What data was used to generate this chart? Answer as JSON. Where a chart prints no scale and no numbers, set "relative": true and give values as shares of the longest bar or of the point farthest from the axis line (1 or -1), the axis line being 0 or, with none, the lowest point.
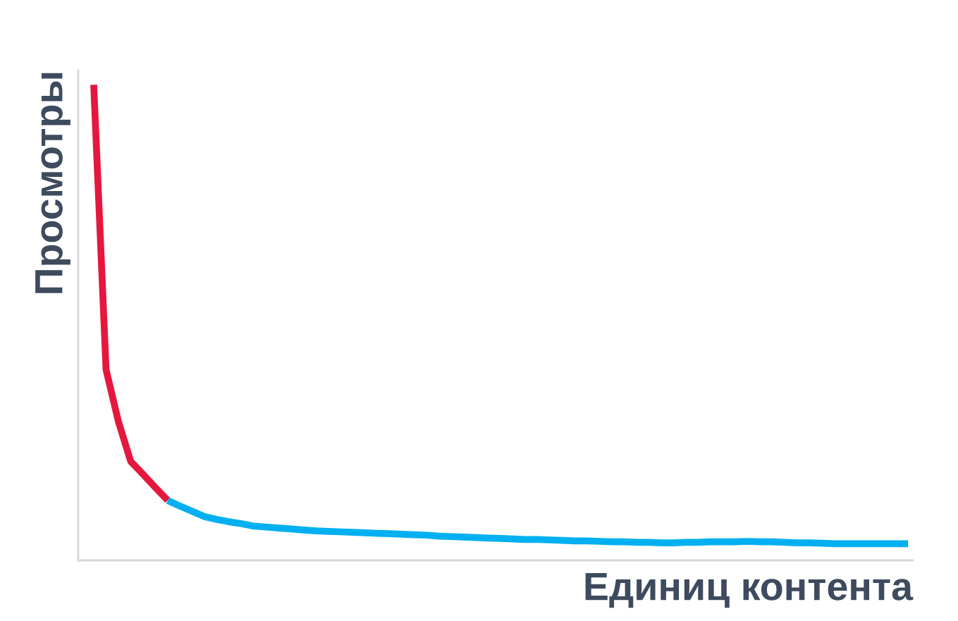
{
  "chart_data": {
    "type": "line",
    "relative": true,
    "xlabel": "Единиц контента",
    "ylabel": "Просмотры",
    "legend": false,
    "marker": "none",
    "line_style": "solid",
    "categories": [
      null,
      null,
      null,
      null,
      null,
      null,
      null,
      null,
      null,
      null,
      null,
      null,
      null,
      null,
      null,
      null,
      null,
      null,
      null,
      null,
      null,
      null,
      null,
      null,
      null,
      null,
      null,
      null,
      null,
      null,
      null,
      null,
      null,
      null,
      null,
      null,
      null,
      null,
      null,
      null,
      null,
      null,
      null,
      null,
      null,
      null,
      null,
      null,
      null,
      null,
      null,
      null,
      null,
      null,
      null,
      null,
      null,
      null,
      null,
      null,
      null,
      null,
      null,
      null,
      null,
      null,
      null
    ],
    "series": [
      {
        "color": "#e5173f",
        "values": [
          1.0,
          0.401,
          0.292,
          0.208,
          0.181,
          0.153,
          0.126,
          null,
          null,
          null,
          null,
          null,
          null,
          null,
          null,
          null,
          null,
          null,
          null,
          null,
          null,
          null,
          null,
          null,
          null,
          null,
          null,
          null,
          null,
          null,
          null,
          null,
          null,
          null,
          null,
          null,
          null,
          null,
          null,
          null,
          null,
          null,
          null,
          null,
          null,
          null,
          null,
          null,
          null,
          null,
          null,
          null,
          null,
          null,
          null,
          null,
          null,
          null,
          null,
          null,
          null,
          null,
          null,
          null,
          null,
          null,
          null
        ]
      },
      {
        "color": "#00b0f0",
        "values": [
          null,
          null,
          null,
          null,
          null,
          null,
          0.126,
          0.114,
          0.103,
          0.092,
          0.086,
          0.081,
          0.077,
          0.072,
          0.07,
          0.068,
          0.066,
          0.064,
          0.062,
          0.061,
          0.06,
          0.059,
          0.058,
          0.057,
          0.056,
          0.055,
          0.054,
          0.053,
          0.051,
          0.05,
          0.049,
          0.048,
          0.047,
          0.046,
          0.045,
          0.044,
          0.044,
          0.043,
          0.042,
          0.041,
          0.041,
          0.04,
          0.039,
          0.039,
          0.038,
          0.038,
          0.037,
          0.037,
          0.038,
          0.038,
          0.039,
          0.039,
          0.039,
          0.04,
          0.039,
          0.039,
          0.038,
          0.037,
          0.037,
          0.036,
          0.035,
          0.035,
          0.035,
          0.035,
          0.035,
          0.035,
          0.035
        ]
      }
    ]
  }
}
